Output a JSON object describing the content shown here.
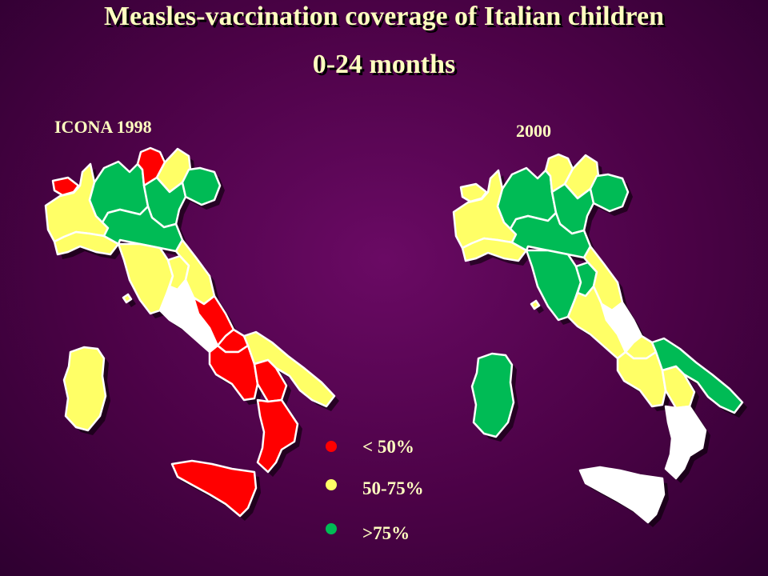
{
  "title": {
    "line1": "Measles-vaccination coverage of Italian children",
    "line2": "0-24 months"
  },
  "colors": {
    "low": "#ff0000",
    "mid": "#ffff66",
    "high": "#00bb55",
    "no_data": "#ffffff",
    "background": "#4b0246",
    "text": "#ffffc0"
  },
  "legend": [
    {
      "label": "< 50%",
      "category": "low"
    },
    {
      "label": "50-75%",
      "category": "mid"
    },
    {
      "label": ">75%",
      "category": "high"
    }
  ],
  "maps": [
    {
      "label": "ICONA 1998",
      "regions": {
        "aosta": "low",
        "piedmont": "mid",
        "lombardy": "high",
        "trentino": "low",
        "trentino-east": "mid",
        "veneto": "high",
        "friuli": "high",
        "liguria": "mid",
        "emilia": "high",
        "tuscany": "mid",
        "umbria": "mid",
        "marche": "mid",
        "lazio": "no_data",
        "abruzzo": "low",
        "molise": "low",
        "campania": "low",
        "apulia": "mid",
        "basilicata": "low",
        "calabria": "low",
        "sicily": "low",
        "sardinia": "mid"
      }
    },
    {
      "label": "2000",
      "regions": {
        "aosta": "mid",
        "piedmont": "mid",
        "lombardy": "high",
        "trentino": "mid",
        "trentino-east": "mid",
        "veneto": "high",
        "friuli": "high",
        "liguria": "mid",
        "emilia": "high",
        "tuscany": "high",
        "umbria": "high",
        "marche": "mid",
        "lazio": "mid",
        "abruzzo": "no_data",
        "molise": "mid",
        "campania": "mid",
        "apulia": "high",
        "basilicata": "mid",
        "calabria": "no_data",
        "sicily": "no_data",
        "sardinia": "high"
      }
    }
  ]
}
